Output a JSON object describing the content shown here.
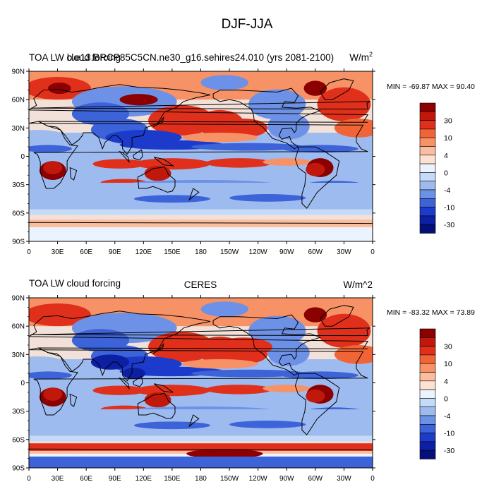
{
  "figure_title": "DJF-JJA",
  "panels": [
    {
      "left_title": "TOA LW cloud forcing",
      "center_title": "b.e13.BRCP85C5CN.ne30_g16.sehires24.010 (yrs 2081-2100)",
      "units": "W/m",
      "units_sup": "2",
      "stats": "MIN = -69.87 MAX =  90.40"
    },
    {
      "left_title": "TOA LW cloud forcing",
      "center_title": "CERES",
      "units": "W/m^2",
      "units_sup": "",
      "stats": "MIN = -83.32 MAX =  73.89"
    }
  ],
  "axes": {
    "lat_labels": [
      "90N",
      "60N",
      "30N",
      "0",
      "30S",
      "60S",
      "90S"
    ],
    "lon_labels": [
      "0",
      "30E",
      "60E",
      "90E",
      "120E",
      "150E",
      "180",
      "150W",
      "120W",
      "90W",
      "60W",
      "30W",
      "0"
    ]
  },
  "colorbar": {
    "colors": [
      "#f2e1d8",
      "#8b0000",
      "#c1180c",
      "#e0301b",
      "#f16436",
      "#f79266",
      "#fbbd9d",
      "#fde2d1",
      "#eaf3ff",
      "#c5daf6",
      "#9dbbef",
      "#6d91e6",
      "#3d63d9",
      "#1d3bca",
      "#0d1fa2",
      "#050f7a"
    ],
    "labels": [
      "30",
      "10",
      "4",
      "0",
      "-4",
      "-10",
      "-30"
    ],
    "missing_color": "#ffffff",
    "coast_color": "#000000"
  }
}
